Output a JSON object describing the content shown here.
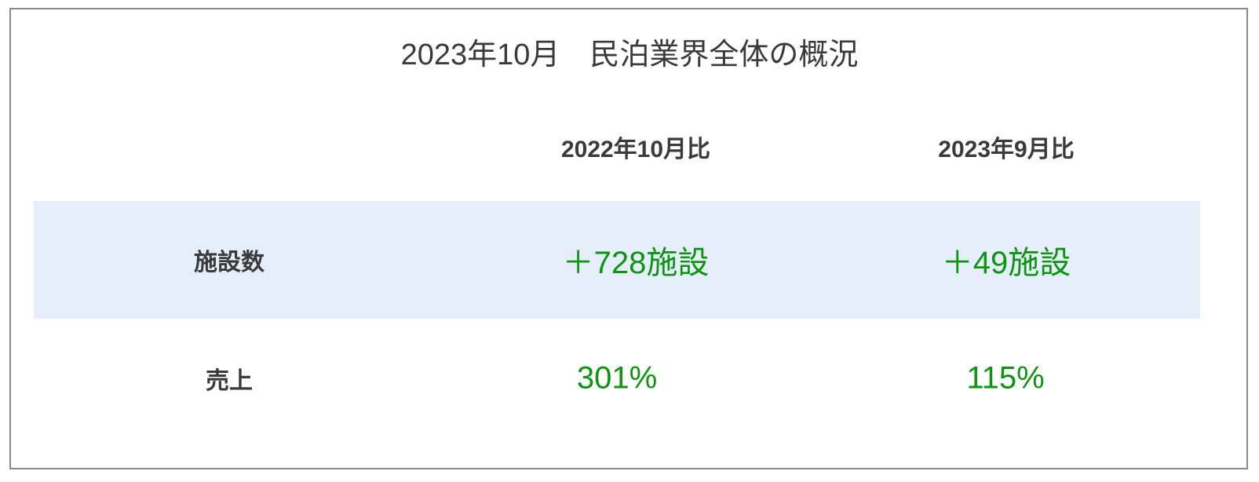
{
  "title": "2023年10月　民泊業界全体の概況",
  "columns": [
    "2022年10月比",
    "2023年9月比"
  ],
  "rows": [
    {
      "label": "施設数",
      "values": [
        "＋728施設",
        "＋49施設"
      ]
    },
    {
      "label": "売上",
      "values": [
        "301%",
        "115%"
      ]
    }
  ],
  "colors": {
    "positive": "#0d9410",
    "band": "#e6eefb",
    "text": "#3a3a3a"
  }
}
